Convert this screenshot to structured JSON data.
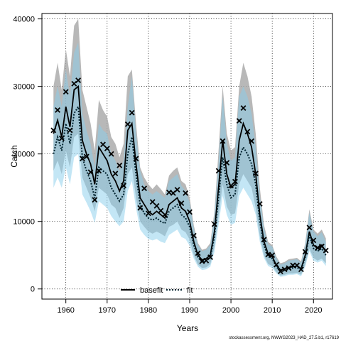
{
  "chart_data": {
    "type": "line",
    "xlabel": "Years",
    "ylabel": "Catch",
    "xlim": [
      1954.2,
      1958.6,
      2024.6
    ],
    "x_ticks": [
      1960,
      1970,
      1980,
      1990,
      2000,
      2010,
      2020
    ],
    "y_ticks": [
      0,
      10000,
      20000,
      30000,
      40000
    ],
    "ylim": [
      -1500,
      40800
    ],
    "grid": true,
    "legend": {
      "position": "bottom-center",
      "entries": [
        "basefit",
        "fit"
      ]
    },
    "footer": "stockassessment.org, NWWG2023_HAD_27.5.b1, r17619",
    "colors": {
      "basefit_band": "#a6a6a6",
      "fit_band": "#87ceeb",
      "basefit_line": "#000000",
      "fit_line": "#00222e",
      "observed_marker": "#000000"
    },
    "series": [
      {
        "name": "basefit",
        "x": [
          1957,
          1958,
          1959,
          1960,
          1961,
          1962,
          1963,
          1964,
          1965,
          1966,
          1967,
          1968,
          1969,
          1970,
          1971,
          1972,
          1973,
          1974,
          1975,
          1976,
          1977,
          1978,
          1979,
          1980,
          1981,
          1982,
          1983,
          1984,
          1985,
          1986,
          1987,
          1988,
          1989,
          1990,
          1991,
          1992,
          1993,
          1994,
          1995,
          1996,
          1997,
          1998,
          1999,
          2000,
          2001,
          2002,
          2003,
          2004,
          2005,
          2006,
          2007,
          2008,
          2009,
          2010,
          2011,
          2012,
          2013,
          2014,
          2015,
          2016,
          2017,
          2018,
          2019,
          2020,
          2021,
          2022,
          2023
        ],
        "y": [
          23000,
          25000,
          22500,
          27000,
          24000,
          29500,
          30000,
          22000,
          20000,
          18500,
          15500,
          21000,
          20000,
          19000,
          17000,
          16000,
          14500,
          16000,
          23500,
          24500,
          18500,
          13500,
          12500,
          11500,
          11000,
          11500,
          11000,
          10500,
          12500,
          13000,
          13500,
          12000,
          11500,
          10000,
          7000,
          5000,
          4300,
          4500,
          5000,
          8500,
          15000,
          22000,
          17000,
          15000,
          15500,
          22000,
          24500,
          23000,
          21000,
          17000,
          11000,
          7000,
          5200,
          4800,
          3500,
          2800,
          3000,
          3200,
          3300,
          3400,
          3000,
          5000,
          8500,
          6500,
          6000,
          6500,
          5500
        ],
        "lower": [
          17500,
          19000,
          17000,
          20500,
          18000,
          22500,
          23000,
          16500,
          15000,
          13500,
          11500,
          15000,
          14500,
          14000,
          12500,
          12000,
          10500,
          12000,
          17000,
          18000,
          13500,
          10000,
          9200,
          8500,
          8200,
          8500,
          8200,
          7800,
          9200,
          9500,
          10000,
          8800,
          8400,
          7300,
          5000,
          3600,
          3100,
          3200,
          3700,
          6200,
          10800,
          15500,
          12200,
          11000,
          11200,
          15500,
          17000,
          16000,
          15000,
          12000,
          7800,
          5000,
          3700,
          3400,
          2500,
          2000,
          2100,
          2300,
          2300,
          2400,
          2100,
          3600,
          6000,
          4600,
          4200,
          4500,
          3800
        ],
        "upper": [
          30000,
          33500,
          29500,
          35500,
          31500,
          39000,
          40000,
          29500,
          27000,
          24500,
          20500,
          28000,
          26500,
          25500,
          22500,
          21500,
          19500,
          21500,
          31500,
          32500,
          24500,
          18000,
          16500,
          15500,
          14800,
          15500,
          14800,
          14000,
          16800,
          17500,
          18000,
          16000,
          15500,
          13500,
          9400,
          6800,
          5800,
          6000,
          6800,
          11500,
          20500,
          30000,
          23000,
          20500,
          21000,
          30000,
          33500,
          31500,
          28500,
          23000,
          15000,
          9500,
          7000,
          6500,
          4800,
          3800,
          4000,
          4400,
          4500,
          4600,
          4100,
          6800,
          11800,
          8800,
          8200,
          8800,
          7500
        ]
      },
      {
        "name": "fit",
        "x": [
          1957,
          1958,
          1959,
          1960,
          1961,
          1962,
          1963,
          1964,
          1965,
          1966,
          1967,
          1968,
          1969,
          1970,
          1971,
          1972,
          1973,
          1974,
          1975,
          1976,
          1977,
          1978,
          1979,
          1980,
          1981,
          1982,
          1983,
          1984,
          1985,
          1986,
          1987,
          1988,
          1989,
          1990,
          1991,
          1992,
          1993,
          1994,
          1995,
          1996,
          1997,
          1998,
          1999,
          2000,
          2001,
          2002,
          2003,
          2004,
          2005,
          2006,
          2007,
          2008,
          2009,
          2010,
          2011,
          2012,
          2013,
          2014,
          2015,
          2016,
          2017,
          2018,
          2019,
          2020,
          2021,
          2022,
          2023
        ],
        "y": [
          20000,
          22500,
          20500,
          24500,
          21500,
          26000,
          27000,
          19500,
          17500,
          16000,
          13500,
          18000,
          17500,
          17000,
          15000,
          14000,
          13000,
          14000,
          20000,
          22500,
          17000,
          12500,
          11200,
          10500,
          10200,
          10500,
          10000,
          9700,
          11500,
          12000,
          12500,
          11000,
          10500,
          9200,
          6500,
          4700,
          4000,
          4200,
          4700,
          7800,
          13500,
          19500,
          15500,
          13500,
          14000,
          19500,
          21000,
          20000,
          18500,
          15500,
          10000,
          6500,
          4800,
          4500,
          3300,
          2600,
          2800,
          3000,
          3100,
          3200,
          2800,
          4700,
          8000,
          6000,
          5600,
          6000,
          5000
        ],
        "lower": [
          15000,
          16500,
          15000,
          18000,
          15500,
          19500,
          20000,
          14000,
          12800,
          11500,
          9800,
          13000,
          12500,
          12000,
          10800,
          10000,
          9300,
          10000,
          14500,
          16000,
          12000,
          8800,
          8000,
          7400,
          7200,
          7400,
          7000,
          6800,
          8000,
          8400,
          8800,
          7700,
          7400,
          6400,
          4500,
          3300,
          2800,
          2900,
          3300,
          5500,
          9500,
          13800,
          11000,
          9500,
          9800,
          13800,
          15000,
          14000,
          13000,
          11000,
          7000,
          4600,
          3400,
          3100,
          2300,
          1800,
          1900,
          2100,
          2100,
          2200,
          1900,
          3300,
          5600,
          4200,
          3900,
          4200,
          3400
        ],
        "upper": [
          27000,
          30000,
          27000,
          32500,
          28500,
          35000,
          36500,
          26000,
          23500,
          21500,
          18000,
          24500,
          23500,
          23000,
          20000,
          19000,
          17500,
          19000,
          27000,
          31500,
          23000,
          17500,
          15500,
          14500,
          14000,
          14500,
          14000,
          13500,
          16000,
          16500,
          17000,
          15300,
          14500,
          12800,
          9000,
          6500,
          5600,
          5800,
          6500,
          10800,
          18800,
          28500,
          21500,
          19000,
          19500,
          28500,
          30000,
          28500,
          26000,
          21000,
          13800,
          9000,
          6600,
          6300,
          4600,
          3600,
          3800,
          4200,
          4300,
          4400,
          3900,
          6500,
          11300,
          8500,
          7800,
          8400,
          7000
        ]
      },
      {
        "name": "observed",
        "x": [
          1957,
          1958,
          1959,
          1960,
          1961,
          1962,
          1963,
          1964,
          1965,
          1966,
          1967,
          1968,
          1969,
          1970,
          1971,
          1972,
          1973,
          1974,
          1975,
          1976,
          1977,
          1978,
          1979,
          1980,
          1981,
          1982,
          1983,
          1984,
          1985,
          1986,
          1987,
          1988,
          1989,
          1990,
          1991,
          1992,
          1993,
          1994,
          1995,
          1996,
          1997,
          1998,
          1999,
          2000,
          2001,
          2002,
          2003,
          2004,
          2005,
          2006,
          2007,
          2008,
          2009,
          2010,
          2011,
          2012,
          2013,
          2014,
          2015,
          2016,
          2017,
          2018,
          2019,
          2020,
          2021,
          2022,
          2023
        ],
        "y": [
          23500,
          26500,
          22300,
          29200,
          23500,
          30400,
          30900,
          19300,
          19600,
          17300,
          13200,
          17500,
          21400,
          20800,
          20000,
          17100,
          18300,
          15300,
          24400,
          26100,
          19300,
          12000,
          14900,
          11200,
          12900,
          12300,
          11600,
          11000,
          14300,
          14200,
          14700,
          12700,
          14200,
          11400,
          7900,
          5300,
          4100,
          4200,
          4700,
          9600,
          17500,
          21900,
          18700,
          15300,
          15900,
          24900,
          26800,
          23300,
          21900,
          17100,
          12600,
          7300,
          5100,
          5000,
          3600,
          2600,
          2900,
          3100,
          3500,
          3500,
          2900,
          5500,
          9100,
          7200,
          6100,
          6300,
          5700
        ]
      }
    ]
  }
}
